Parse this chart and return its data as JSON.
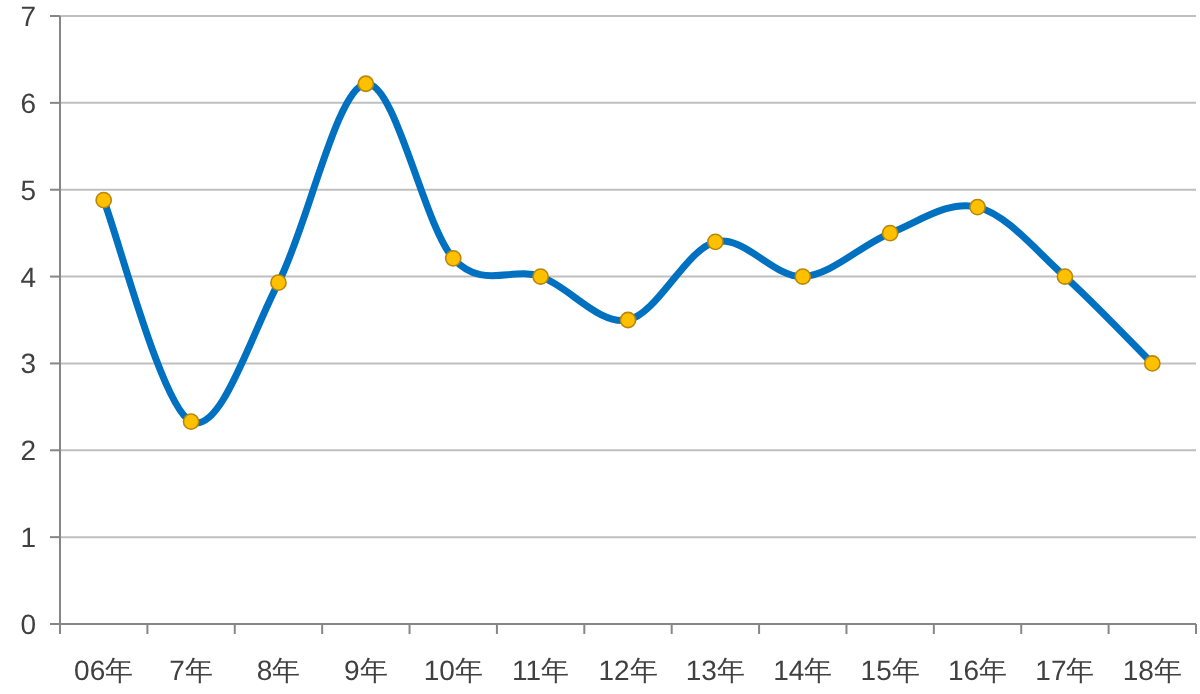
{
  "chart_data": {
    "type": "line",
    "categories": [
      "06年",
      "7年",
      "8年",
      "9年",
      "10年",
      "11年",
      "12年",
      "13年",
      "14年",
      "15年",
      "16年",
      "17年",
      "18年"
    ],
    "series": [
      {
        "color": "#0070c0",
        "values": [
          4.88,
          2.33,
          3.93,
          6.22,
          4.21,
          4.0,
          3.5,
          4.4,
          4.0,
          4.5,
          4.8,
          4.0,
          3.0
        ]
      }
    ],
    "ylim": [
      0,
      7
    ],
    "yticks": [
      0,
      1,
      2,
      3,
      4,
      5,
      6,
      7
    ],
    "grid": "y",
    "marker": "circle",
    "line_style": "solid"
  }
}
